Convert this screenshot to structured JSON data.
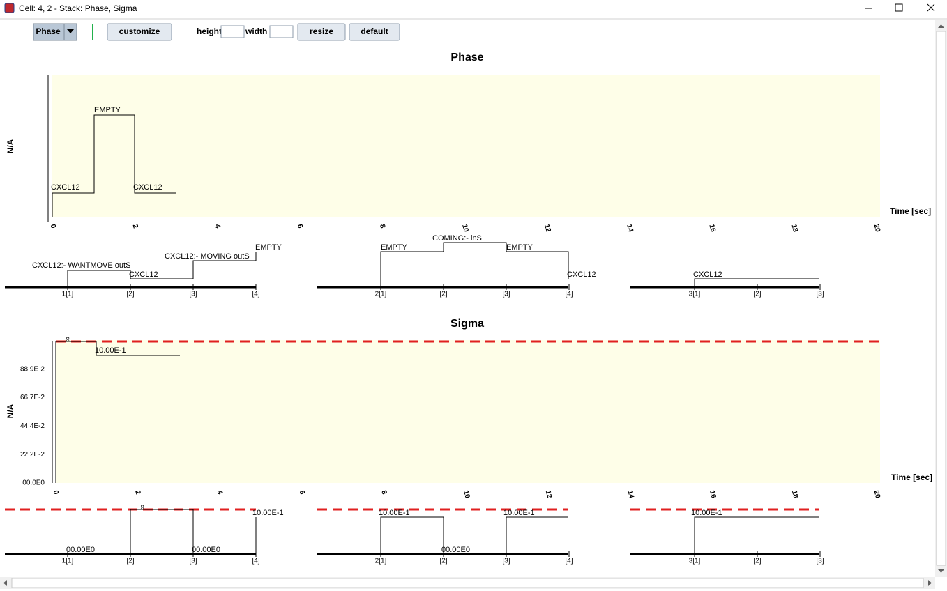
{
  "window": {
    "title": "Cell: 4, 2 - Stack: Phase, Sigma"
  },
  "toolbar": {
    "selector": "Phase",
    "customize": "customize",
    "height_label": "height",
    "width_label": "width",
    "resize": "resize",
    "default": "default"
  },
  "phase": {
    "title": "Phase",
    "y_label": "N/A",
    "x_label": "Time [sec]",
    "x_ticks": [
      0,
      2,
      4,
      6,
      8,
      10,
      12,
      14,
      16,
      18,
      20
    ],
    "labels": [
      "CXCL12",
      "EMPTY",
      "CXCL12"
    ],
    "strips": [
      {
        "ticks": [
          "1[1]",
          "[2]",
          "[3]",
          "[4]"
        ],
        "labels": [
          "CXCL12:- WANTMOVE outS",
          "CXCL12",
          "CXCL12:- MOVING outS",
          "EMPTY"
        ]
      },
      {
        "ticks": [
          "2[1]",
          "[2]",
          "[3]",
          "[4]"
        ],
        "labels": [
          "EMPTY",
          "COMING:- inS",
          "EMPTY",
          "CXCL12"
        ]
      },
      {
        "ticks": [
          "3[1]",
          "[2]",
          "[3]"
        ],
        "labels": [
          "CXCL12"
        ]
      }
    ]
  },
  "sigma": {
    "title": "Sigma",
    "y_label": "N/A",
    "x_label": "Time [sec]",
    "x_ticks": [
      0,
      2,
      4,
      6,
      8,
      10,
      12,
      14,
      16,
      18,
      20
    ],
    "y_ticks": [
      "00.0E0",
      "22.2E-2",
      "44.4E-2",
      "66.7E-2",
      "88.9E-2"
    ],
    "labels": [
      "∞",
      "10.00E-1"
    ],
    "strips": [
      {
        "ticks": [
          "1[1]",
          "[2]",
          "[3]",
          "[4]"
        ],
        "labels": [
          "00.00E0",
          "∞",
          "00.00E0",
          "10.00E-1"
        ]
      },
      {
        "ticks": [
          "2[1]",
          "[2]",
          "[3]",
          "[4]"
        ],
        "labels": [
          "10.00E-1",
          "00.00E0",
          "10.00E-1"
        ]
      },
      {
        "ticks": [
          "3[1]",
          "[2]",
          "[3]"
        ],
        "labels": [
          "10.00E-1"
        ]
      }
    ]
  }
}
